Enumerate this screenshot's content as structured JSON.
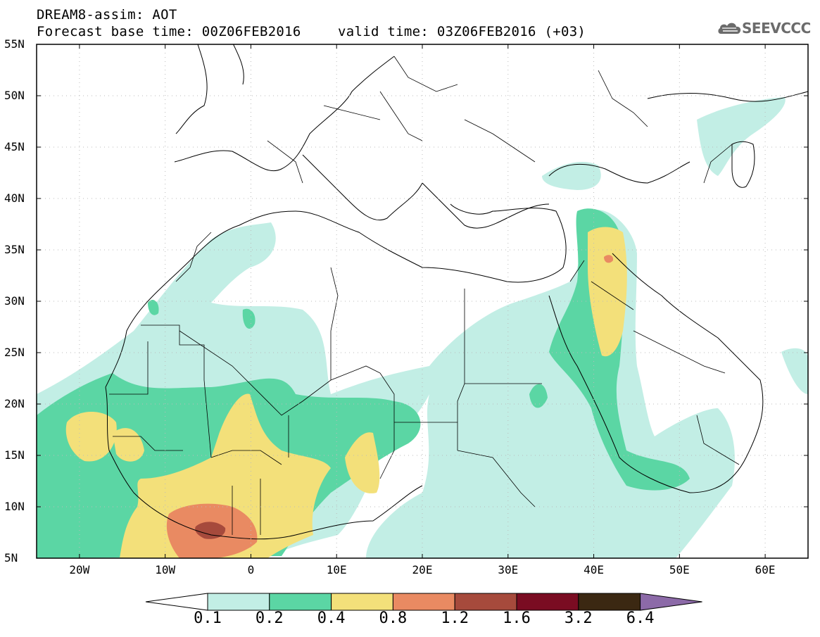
{
  "header": {
    "title_line1": "DREAM8-assim: AOT",
    "title_line2": "Forecast base time: 00Z06FEB2016",
    "valid_time": "valid time: 03Z06FEB2016 (+03)",
    "logo_text": "SEEVCCC"
  },
  "map": {
    "extent": {
      "lon_min": -25,
      "lon_max": 65,
      "lat_min": 5,
      "lat_max": 55
    },
    "lat_ticks": [
      "55N",
      "50N",
      "45N",
      "40N",
      "35N",
      "30N",
      "25N",
      "20N",
      "15N",
      "10N",
      "5N"
    ],
    "lon_ticks": [
      "20W",
      "10W",
      "0",
      "10E",
      "20E",
      "30E",
      "40E",
      "50E",
      "60E"
    ]
  },
  "colorbar": {
    "labels": [
      "0.1",
      "0.2",
      "0.4",
      "0.8",
      "1.2",
      "1.6",
      "3.2",
      "6.4"
    ],
    "colors": [
      "#ffffff",
      "#c2eee5",
      "#5bd6a4",
      "#f3e07a",
      "#e98a62",
      "#a64a3c",
      "#7a0c22",
      "#3b2812",
      "#8c6aa8"
    ]
  }
}
